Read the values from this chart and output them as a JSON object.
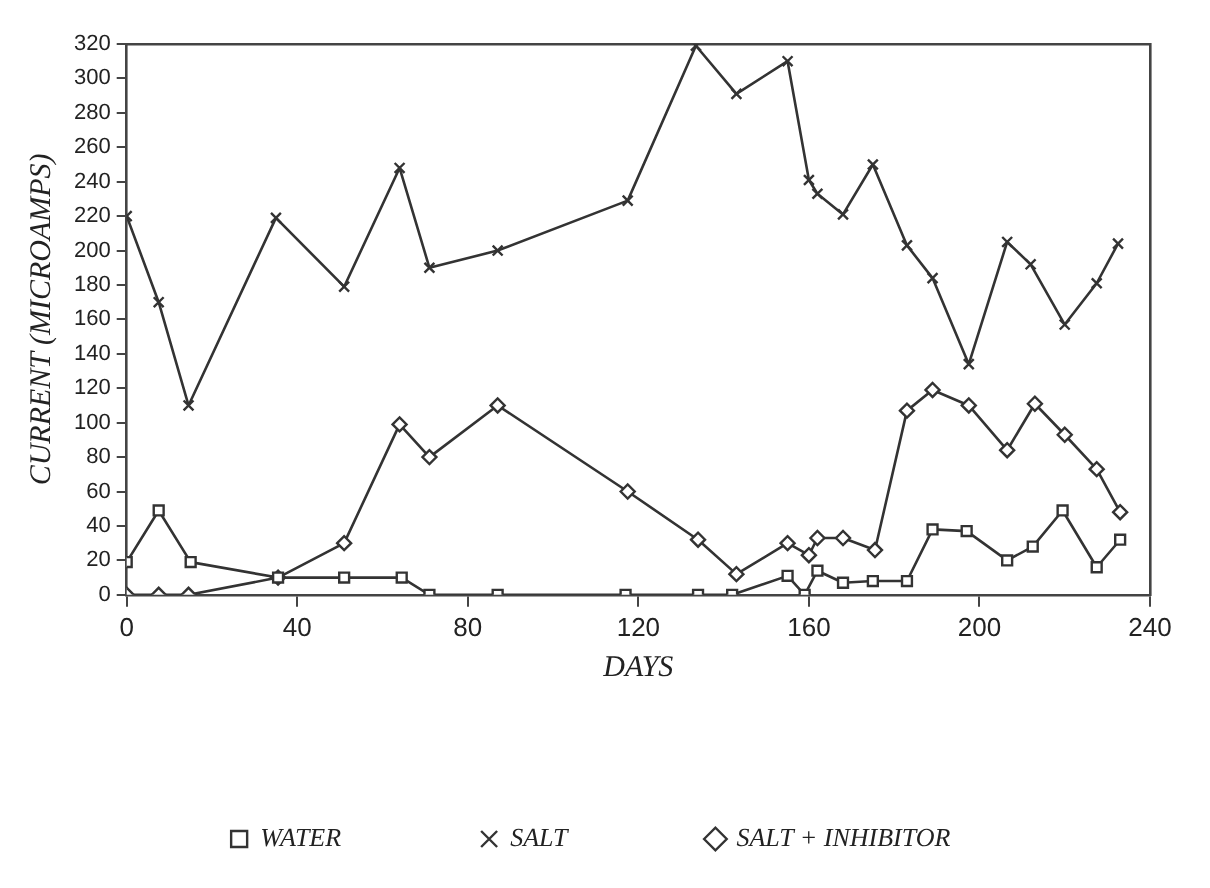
{
  "chart_data": {
    "type": "line",
    "xlabel": "DAYS",
    "ylabel": "CURRENT (MICROAMPS)",
    "xlim": [
      0,
      240
    ],
    "xticks": [
      0,
      40,
      80,
      120,
      160,
      200,
      240
    ],
    "ylim": [
      0,
      320
    ],
    "yticks": [
      0,
      20,
      40,
      60,
      80,
      100,
      120,
      140,
      160,
      180,
      200,
      220,
      240,
      260,
      280,
      300,
      320
    ],
    "grid": false,
    "legend": "bottom",
    "series": [
      {
        "name": "WATER",
        "color": "#333333",
        "marker": "square",
        "x": [
          0,
          7.5,
          15,
          35.5,
          51,
          64.5,
          71,
          87,
          117,
          134,
          142,
          155,
          159,
          162,
          168,
          175,
          183,
          189,
          197,
          206.5,
          212.5,
          219.5,
          227.5,
          233
        ],
        "values": [
          19,
          49,
          19,
          10,
          10,
          10,
          0,
          0,
          0,
          0,
          0,
          11,
          0,
          14,
          7,
          8,
          8,
          38,
          37,
          20,
          28,
          49,
          16,
          32
        ]
      },
      {
        "name": "SALT",
        "color": "#333333",
        "marker": "cross",
        "x": [
          0,
          7.5,
          14.5,
          35,
          51,
          64,
          71,
          87,
          117.5,
          133.5,
          143,
          155,
          160,
          162,
          168,
          175,
          183,
          189,
          197.5,
          206.5,
          212,
          220,
          227.5,
          232.5
        ],
        "values": [
          220,
          170,
          110,
          219,
          179,
          248,
          190,
          200,
          229,
          319,
          291,
          310,
          241,
          233,
          221,
          250,
          203,
          184,
          134,
          205,
          192,
          157,
          181,
          204
        ]
      },
      {
        "name": "SALT + INHIBITOR",
        "color": "#333333",
        "marker": "diamond",
        "x": [
          0,
          7.5,
          14.5,
          35.5,
          51,
          64,
          71,
          87,
          117.5,
          134,
          143,
          155,
          160,
          162,
          168,
          175.5,
          183,
          189,
          197.5,
          206.5,
          213,
          220,
          227.5,
          233
        ],
        "values": [
          0,
          0,
          0,
          10,
          30,
          99,
          80,
          110,
          60,
          32,
          12,
          30,
          23,
          33,
          33,
          26,
          107,
          119,
          110,
          84,
          111,
          93,
          73,
          48
        ]
      }
    ]
  }
}
